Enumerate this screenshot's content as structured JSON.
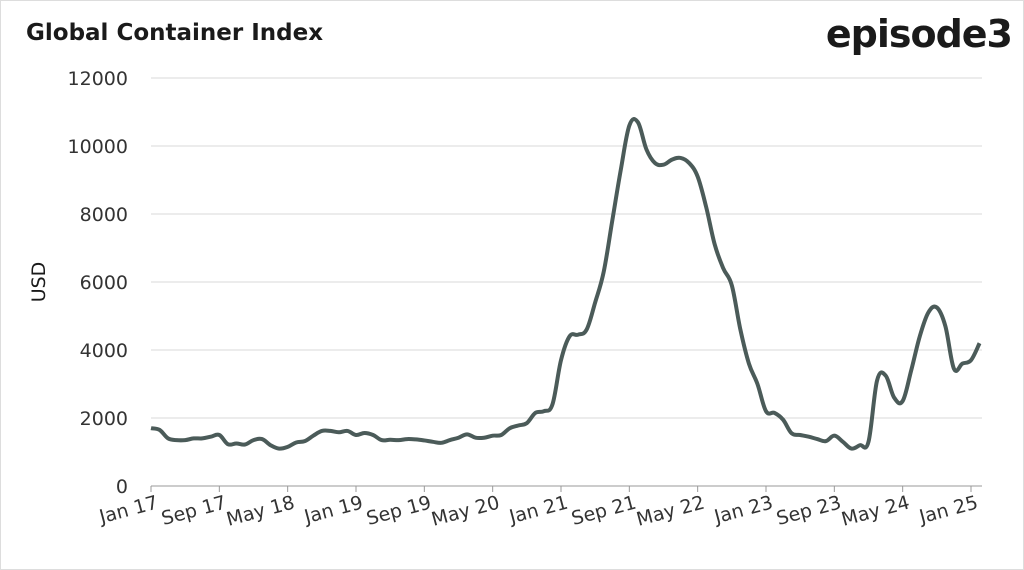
{
  "chart_data": {
    "type": "line",
    "title": "Global Container Index",
    "logo": "episode3",
    "y_label": "USD",
    "categories": [
      "Jan 17",
      null,
      null,
      null,
      null,
      null,
      null,
      null,
      "Sep 17",
      null,
      null,
      null,
      null,
      null,
      null,
      null,
      "May 18",
      null,
      null,
      null,
      null,
      null,
      null,
      null,
      "Jan 19",
      null,
      null,
      null,
      null,
      null,
      null,
      null,
      "Sep 19",
      null,
      null,
      null,
      null,
      null,
      null,
      null,
      "May 20",
      null,
      null,
      null,
      null,
      null,
      null,
      null,
      "Jan 21",
      null,
      null,
      null,
      null,
      null,
      null,
      null,
      "Sep 21",
      null,
      null,
      null,
      null,
      null,
      null,
      null,
      "May 22",
      null,
      null,
      null,
      null,
      null,
      null,
      null,
      "Jan 23",
      null,
      null,
      null,
      null,
      null,
      null,
      null,
      "Sep 23",
      null,
      null,
      null,
      null,
      null,
      null,
      null,
      "May 24",
      null,
      null,
      null,
      null,
      null,
      null,
      null,
      "Jan 25",
      null
    ],
    "series": [
      {
        "color": "#4b5b59",
        "values": [
          1700,
          1650,
          1400,
          1350,
          1350,
          1400,
          1400,
          1450,
          1500,
          1230,
          1250,
          1220,
          1350,
          1380,
          1200,
          1100,
          1150,
          1280,
          1320,
          1480,
          1620,
          1620,
          1580,
          1620,
          1500,
          1560,
          1500,
          1350,
          1360,
          1350,
          1380,
          1370,
          1340,
          1300,
          1270,
          1350,
          1420,
          1520,
          1420,
          1420,
          1480,
          1500,
          1700,
          1780,
          1850,
          2150,
          2200,
          2400,
          3700,
          4400,
          4450,
          4600,
          5400,
          6300,
          7800,
          9300,
          10600,
          10700,
          9900,
          9500,
          9450,
          9600,
          9650,
          9500,
          9100,
          8200,
          7100,
          6400,
          5900,
          4600,
          3600,
          3000,
          2200,
          2150,
          1950,
          1550,
          1500,
          1450,
          1380,
          1320,
          1480,
          1300,
          1100,
          1200,
          1300,
          3100,
          3250,
          2600,
          2500,
          3400,
          4400,
          5100,
          5250,
          4700,
          3450,
          3600,
          3700,
          4200
        ]
      }
    ],
    "ylim": [
      0,
      12000
    ],
    "yticks": [
      0,
      2000,
      4000,
      6000,
      8000,
      10000,
      12000
    ],
    "grid": true
  }
}
